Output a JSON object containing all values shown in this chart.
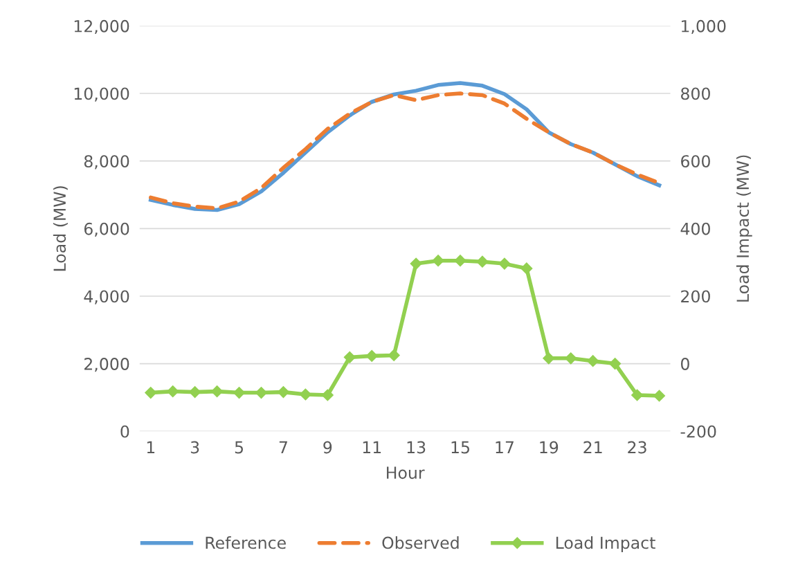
{
  "chart_data": {
    "type": "line",
    "xlabel": "Hour",
    "ylabel": "Load (MW)",
    "y2label": "Load Impact (MW)",
    "x": [
      1,
      2,
      3,
      4,
      5,
      6,
      7,
      8,
      9,
      10,
      11,
      12,
      13,
      14,
      15,
      16,
      17,
      18,
      19,
      20,
      21,
      22,
      23,
      24
    ],
    "xlim": [
      0.5,
      24.5
    ],
    "xticks": [
      1,
      3,
      5,
      7,
      9,
      11,
      13,
      15,
      17,
      19,
      21,
      23
    ],
    "ylim": [
      0,
      12000
    ],
    "yticks": [
      0,
      {
        "value": 2000,
        "label": "2,000"
      },
      {
        "value": 4000,
        "label": "4,000"
      },
      {
        "value": 6000,
        "label": "6,000"
      },
      {
        "value": 8000,
        "label": "8,000"
      },
      {
        "value": 10000,
        "label": "10,000"
      },
      {
        "value": 12000,
        "label": "12,000"
      }
    ],
    "y2lim": [
      -200,
      1000
    ],
    "y2ticks": [
      {
        "value": -200,
        "label": "-200"
      },
      0,
      200,
      400,
      600,
      800,
      {
        "value": 1000,
        "label": "1,000"
      }
    ],
    "grid": "y",
    "legend": "bottom",
    "series": [
      {
        "name": "Reference",
        "color": "#5b9bd5",
        "line_style": "solid",
        "marker": "none",
        "values": [
          6850,
          6700,
          6580,
          6550,
          6720,
          7100,
          7650,
          8250,
          8850,
          9350,
          9750,
          9970,
          10080,
          10250,
          10310,
          10230,
          9980,
          9530,
          8850,
          8500,
          8250,
          7900,
          7550,
          7280
        ]
      },
      {
        "name": "Observed",
        "color": "#ed7d31",
        "line_style": "dashed",
        "marker": "none",
        "values": [
          6920,
          6750,
          6650,
          6600,
          6800,
          7200,
          7800,
          8350,
          8950,
          9400,
          9750,
          9950,
          9800,
          9950,
          10000,
          9950,
          9700,
          9250,
          8850,
          8500,
          8250,
          7900,
          7600,
          7350
        ]
      },
      {
        "name": "Load Impact",
        "color": "#92d050",
        "line_style": "solid",
        "marker": "diamond",
        "axis": "y2",
        "values": [
          -86,
          -82,
          -84,
          -82,
          -86,
          -86,
          -84,
          -91,
          -93,
          19,
          23,
          25,
          296,
          305,
          305,
          302,
          296,
          282,
          16,
          16,
          8,
          0,
          -93,
          -95
        ]
      }
    ]
  }
}
